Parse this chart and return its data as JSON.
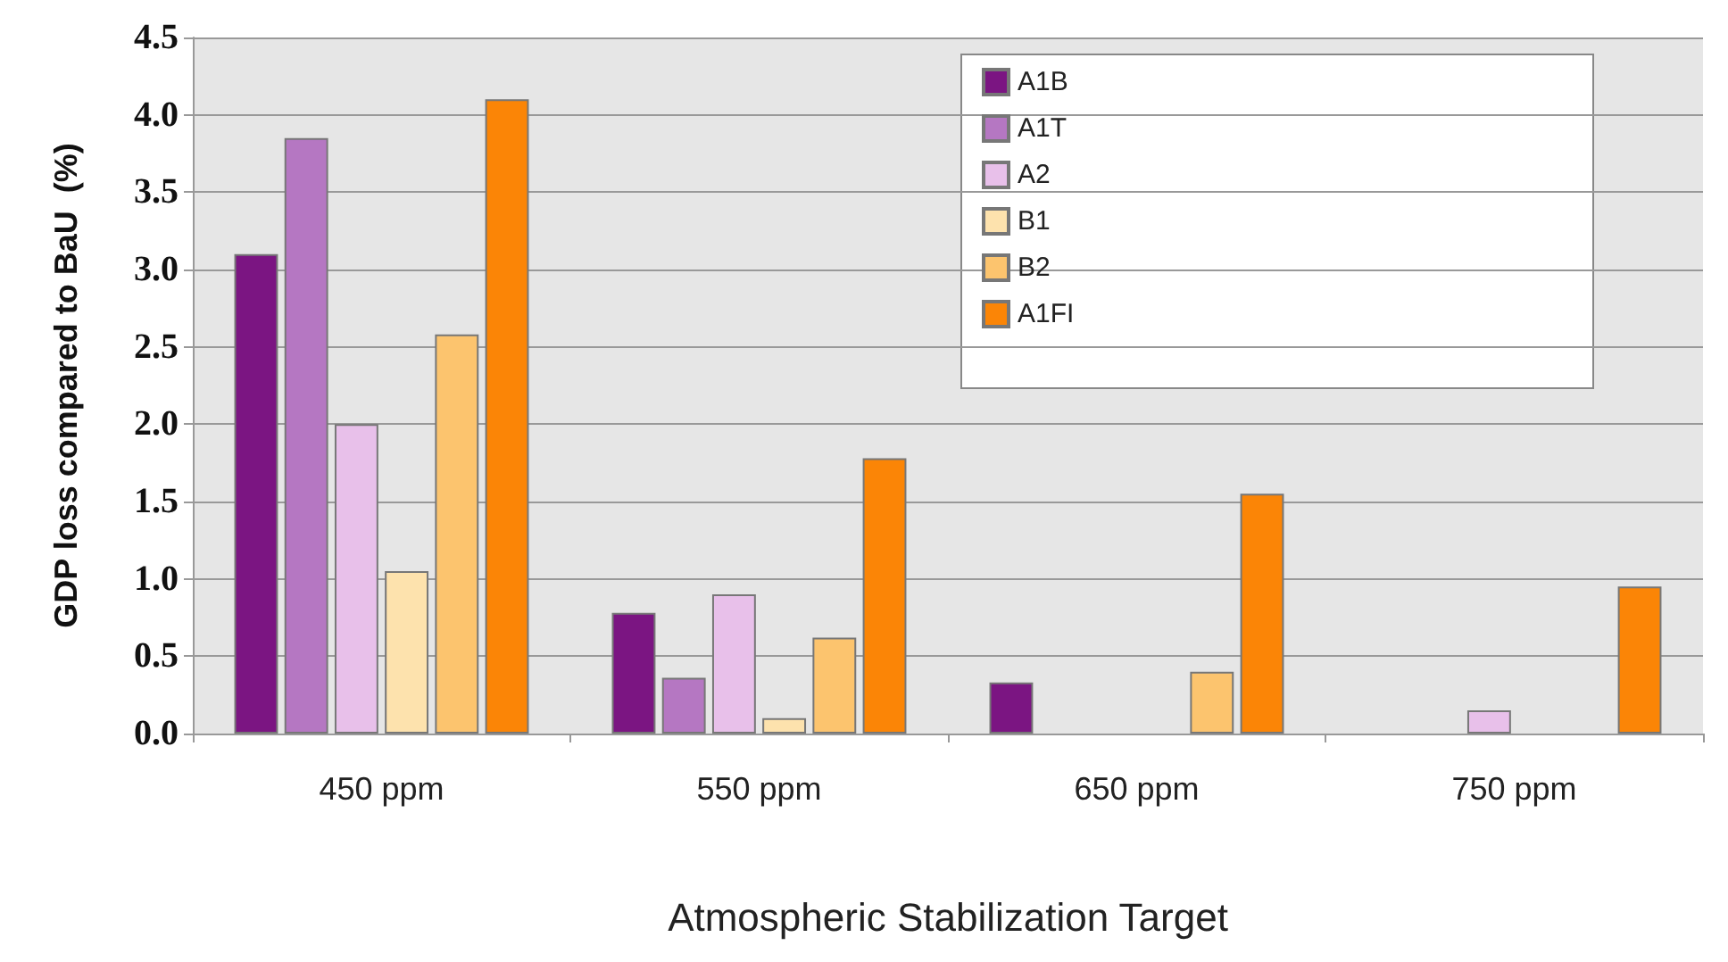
{
  "chart_data": {
    "type": "bar",
    "xlabel": "Atmospheric Stabilization Target",
    "ylabel": "GDP loss compared to BaU  (%)",
    "categories": [
      "450 ppm",
      "550 ppm",
      "650 ppm",
      "750 ppm"
    ],
    "series": [
      {
        "name": "A1B",
        "color": "#7b1582",
        "values": [
          3.1,
          0.78,
          0.33,
          null
        ]
      },
      {
        "name": "A1T",
        "color": "#b577c2",
        "values": [
          3.85,
          0.36,
          null,
          null
        ]
      },
      {
        "name": "A2",
        "color": "#e8c0ea",
        "values": [
          2.0,
          0.9,
          null,
          0.15
        ]
      },
      {
        "name": "B1",
        "color": "#fde2ad",
        "values": [
          1.05,
          0.1,
          null,
          null
        ]
      },
      {
        "name": "B2",
        "color": "#fcc46e",
        "values": [
          2.58,
          0.62,
          0.4,
          null
        ]
      },
      {
        "name": "A1FI",
        "color": "#fb8506",
        "values": [
          4.1,
          1.78,
          1.55,
          0.95
        ]
      }
    ],
    "ylim": [
      0,
      4.5
    ],
    "yticks": [
      {
        "value": 0,
        "label": "0.0"
      },
      {
        "value": 0.5,
        "label": "0.5"
      },
      {
        "value": 1,
        "label": "1.0"
      },
      {
        "value": 1.5,
        "label": "1.5"
      },
      {
        "value": 2,
        "label": "2.0"
      },
      {
        "value": 2.5,
        "label": "2.5"
      },
      {
        "value": 3,
        "label": "3.0"
      },
      {
        "value": 3.5,
        "label": "3.5"
      },
      {
        "value": 4,
        "label": "4.0"
      },
      {
        "value": 4.5,
        "label": "4.5"
      }
    ],
    "grid": "y",
    "legend": "top right"
  }
}
